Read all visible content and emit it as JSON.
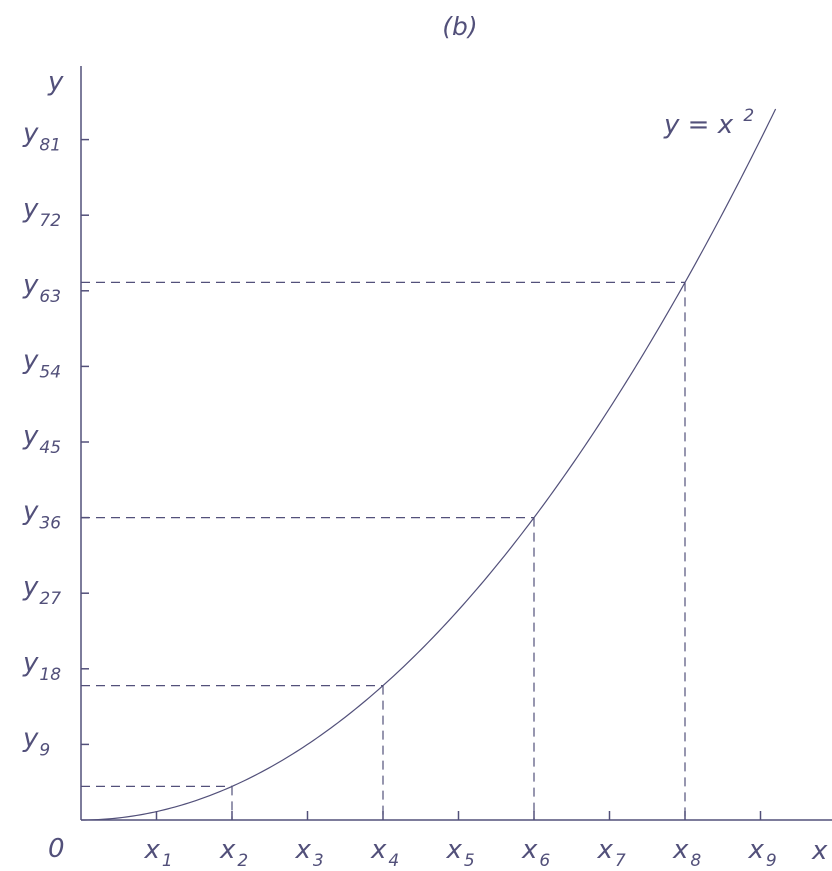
{
  "chart_data": {
    "type": "line",
    "title": "(b)",
    "xlabel": "x",
    "ylabel": "y",
    "origin_label": "0",
    "curve_label": {
      "base": "y = x",
      "sup": "2"
    },
    "x_ticks": [
      {
        "value": 1,
        "base": "x",
        "sub": "1"
      },
      {
        "value": 2,
        "base": "x",
        "sub": "2"
      },
      {
        "value": 3,
        "base": "x",
        "sub": "3"
      },
      {
        "value": 4,
        "base": "x",
        "sub": "4"
      },
      {
        "value": 5,
        "base": "x",
        "sub": "5"
      },
      {
        "value": 6,
        "base": "x",
        "sub": "6"
      },
      {
        "value": 7,
        "base": "x",
        "sub": "7"
      },
      {
        "value": 8,
        "base": "x",
        "sub": "8"
      },
      {
        "value": 9,
        "base": "x",
        "sub": "9"
      }
    ],
    "y_ticks": [
      {
        "value": 9,
        "base": "y",
        "sub": "9"
      },
      {
        "value": 18,
        "base": "y",
        "sub": "18"
      },
      {
        "value": 27,
        "base": "y",
        "sub": "27"
      },
      {
        "value": 36,
        "base": "y",
        "sub": "36"
      },
      {
        "value": 45,
        "base": "y",
        "sub": "45"
      },
      {
        "value": 54,
        "base": "y",
        "sub": "54"
      },
      {
        "value": 63,
        "base": "y",
        "sub": "63"
      },
      {
        "value": 72,
        "base": "y",
        "sub": "72"
      },
      {
        "value": 81,
        "base": "y",
        "sub": "81"
      }
    ],
    "series": [
      {
        "function": "x^2",
        "x_range": [
          0,
          9.2
        ]
      }
    ],
    "guide_points": [
      {
        "x": 2,
        "y": 4
      },
      {
        "x": 4,
        "y": 16
      },
      {
        "x": 6,
        "y": 36
      },
      {
        "x": 8,
        "y": 64
      }
    ],
    "xlim": [
      0,
      10
    ],
    "ylim": [
      0,
      90
    ],
    "grid": false,
    "colors": {
      "ink": "#52507a"
    }
  }
}
